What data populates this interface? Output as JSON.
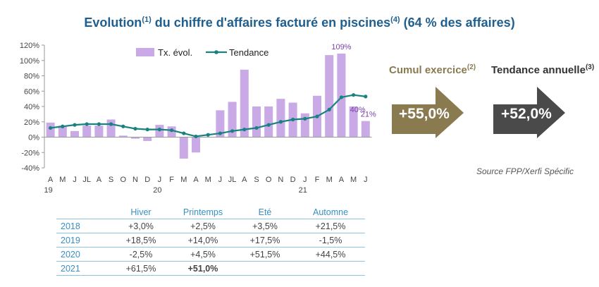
{
  "title": {
    "main": "Evolution",
    "sup1": "(1)",
    "mid": " du chiffre d'affaires facturé en piscines",
    "sup2": "(4)",
    "end": " (64 % des affaires)"
  },
  "chart_data": {
    "type": "bar",
    "categories": [
      "A",
      "M",
      "J",
      "JL",
      "A",
      "S",
      "O",
      "N",
      "D",
      "J",
      "F",
      "M",
      "A",
      "M",
      "J",
      "JL",
      "A",
      "S",
      "O",
      "N",
      "D",
      "J",
      "F",
      "M",
      "A",
      "M",
      "J"
    ],
    "year_labels": [
      {
        "index": 0,
        "label": "19"
      },
      {
        "index": 9,
        "label": "20"
      },
      {
        "index": 21,
        "label": "21"
      }
    ],
    "series": [
      {
        "name": "Tx. évol.",
        "type": "bar",
        "color": "#c9a9e6",
        "values": [
          19,
          15,
          8,
          15,
          15,
          23,
          2,
          -2,
          -5,
          16,
          14,
          -28,
          -20,
          0,
          35,
          46,
          88,
          40,
          40,
          50,
          45,
          31,
          54,
          107,
          109,
          40,
          21
        ]
      },
      {
        "name": "Tendance",
        "type": "line",
        "color": "#17827f",
        "values": [
          12,
          14,
          16,
          17,
          17,
          17,
          14,
          11,
          10,
          10,
          9,
          5,
          1,
          3,
          5,
          8,
          10,
          12,
          16,
          20,
          23,
          24,
          27,
          36,
          52,
          55,
          53
        ]
      }
    ],
    "ylim": [
      -40,
      120
    ],
    "yticks": [
      -40,
      -20,
      0,
      20,
      40,
      60,
      80,
      100,
      120
    ],
    "ytick_labels": [
      "-40%",
      "-20%",
      "0%",
      "20%",
      "40%",
      "60%",
      "80%",
      "100%",
      "120%"
    ],
    "annotations": [
      {
        "index": 24,
        "series": "Tx. évol.",
        "text": "109%"
      },
      {
        "index": 25,
        "series": "Tx. évol.",
        "text": "40%"
      },
      {
        "index": 26,
        "series": "Tx. évol.",
        "text": "21%"
      }
    ],
    "legend_position": "top",
    "grid": false
  },
  "kpis": [
    {
      "title": "Cumul exercice",
      "sup": "(2)",
      "value": "+55,0%",
      "color": "#8a7a50",
      "title_color": "#8a7a50"
    },
    {
      "title": "Tendance annuelle",
      "sup": "(3)",
      "value": "+52,0%",
      "color": "#4a4a4a",
      "title_color": "#333333"
    }
  ],
  "source": "Source FPP/Xerfi Spécific",
  "table": {
    "headers": [
      "",
      "Hiver",
      "Printemps",
      "Eté",
      "Automne"
    ],
    "rows": [
      [
        "2018",
        "+3,0%",
        "+2,5%",
        "+3,5%",
        "+21,5%"
      ],
      [
        "2019",
        "+18,5%",
        "+14,0%",
        "+17,5%",
        "-1,5%"
      ],
      [
        "2020",
        "-2,5%",
        "+4,5%",
        "+51,5%",
        "+44,5%"
      ],
      [
        "2021",
        "+61,5%",
        "+51,0%",
        "",
        ""
      ]
    ]
  }
}
